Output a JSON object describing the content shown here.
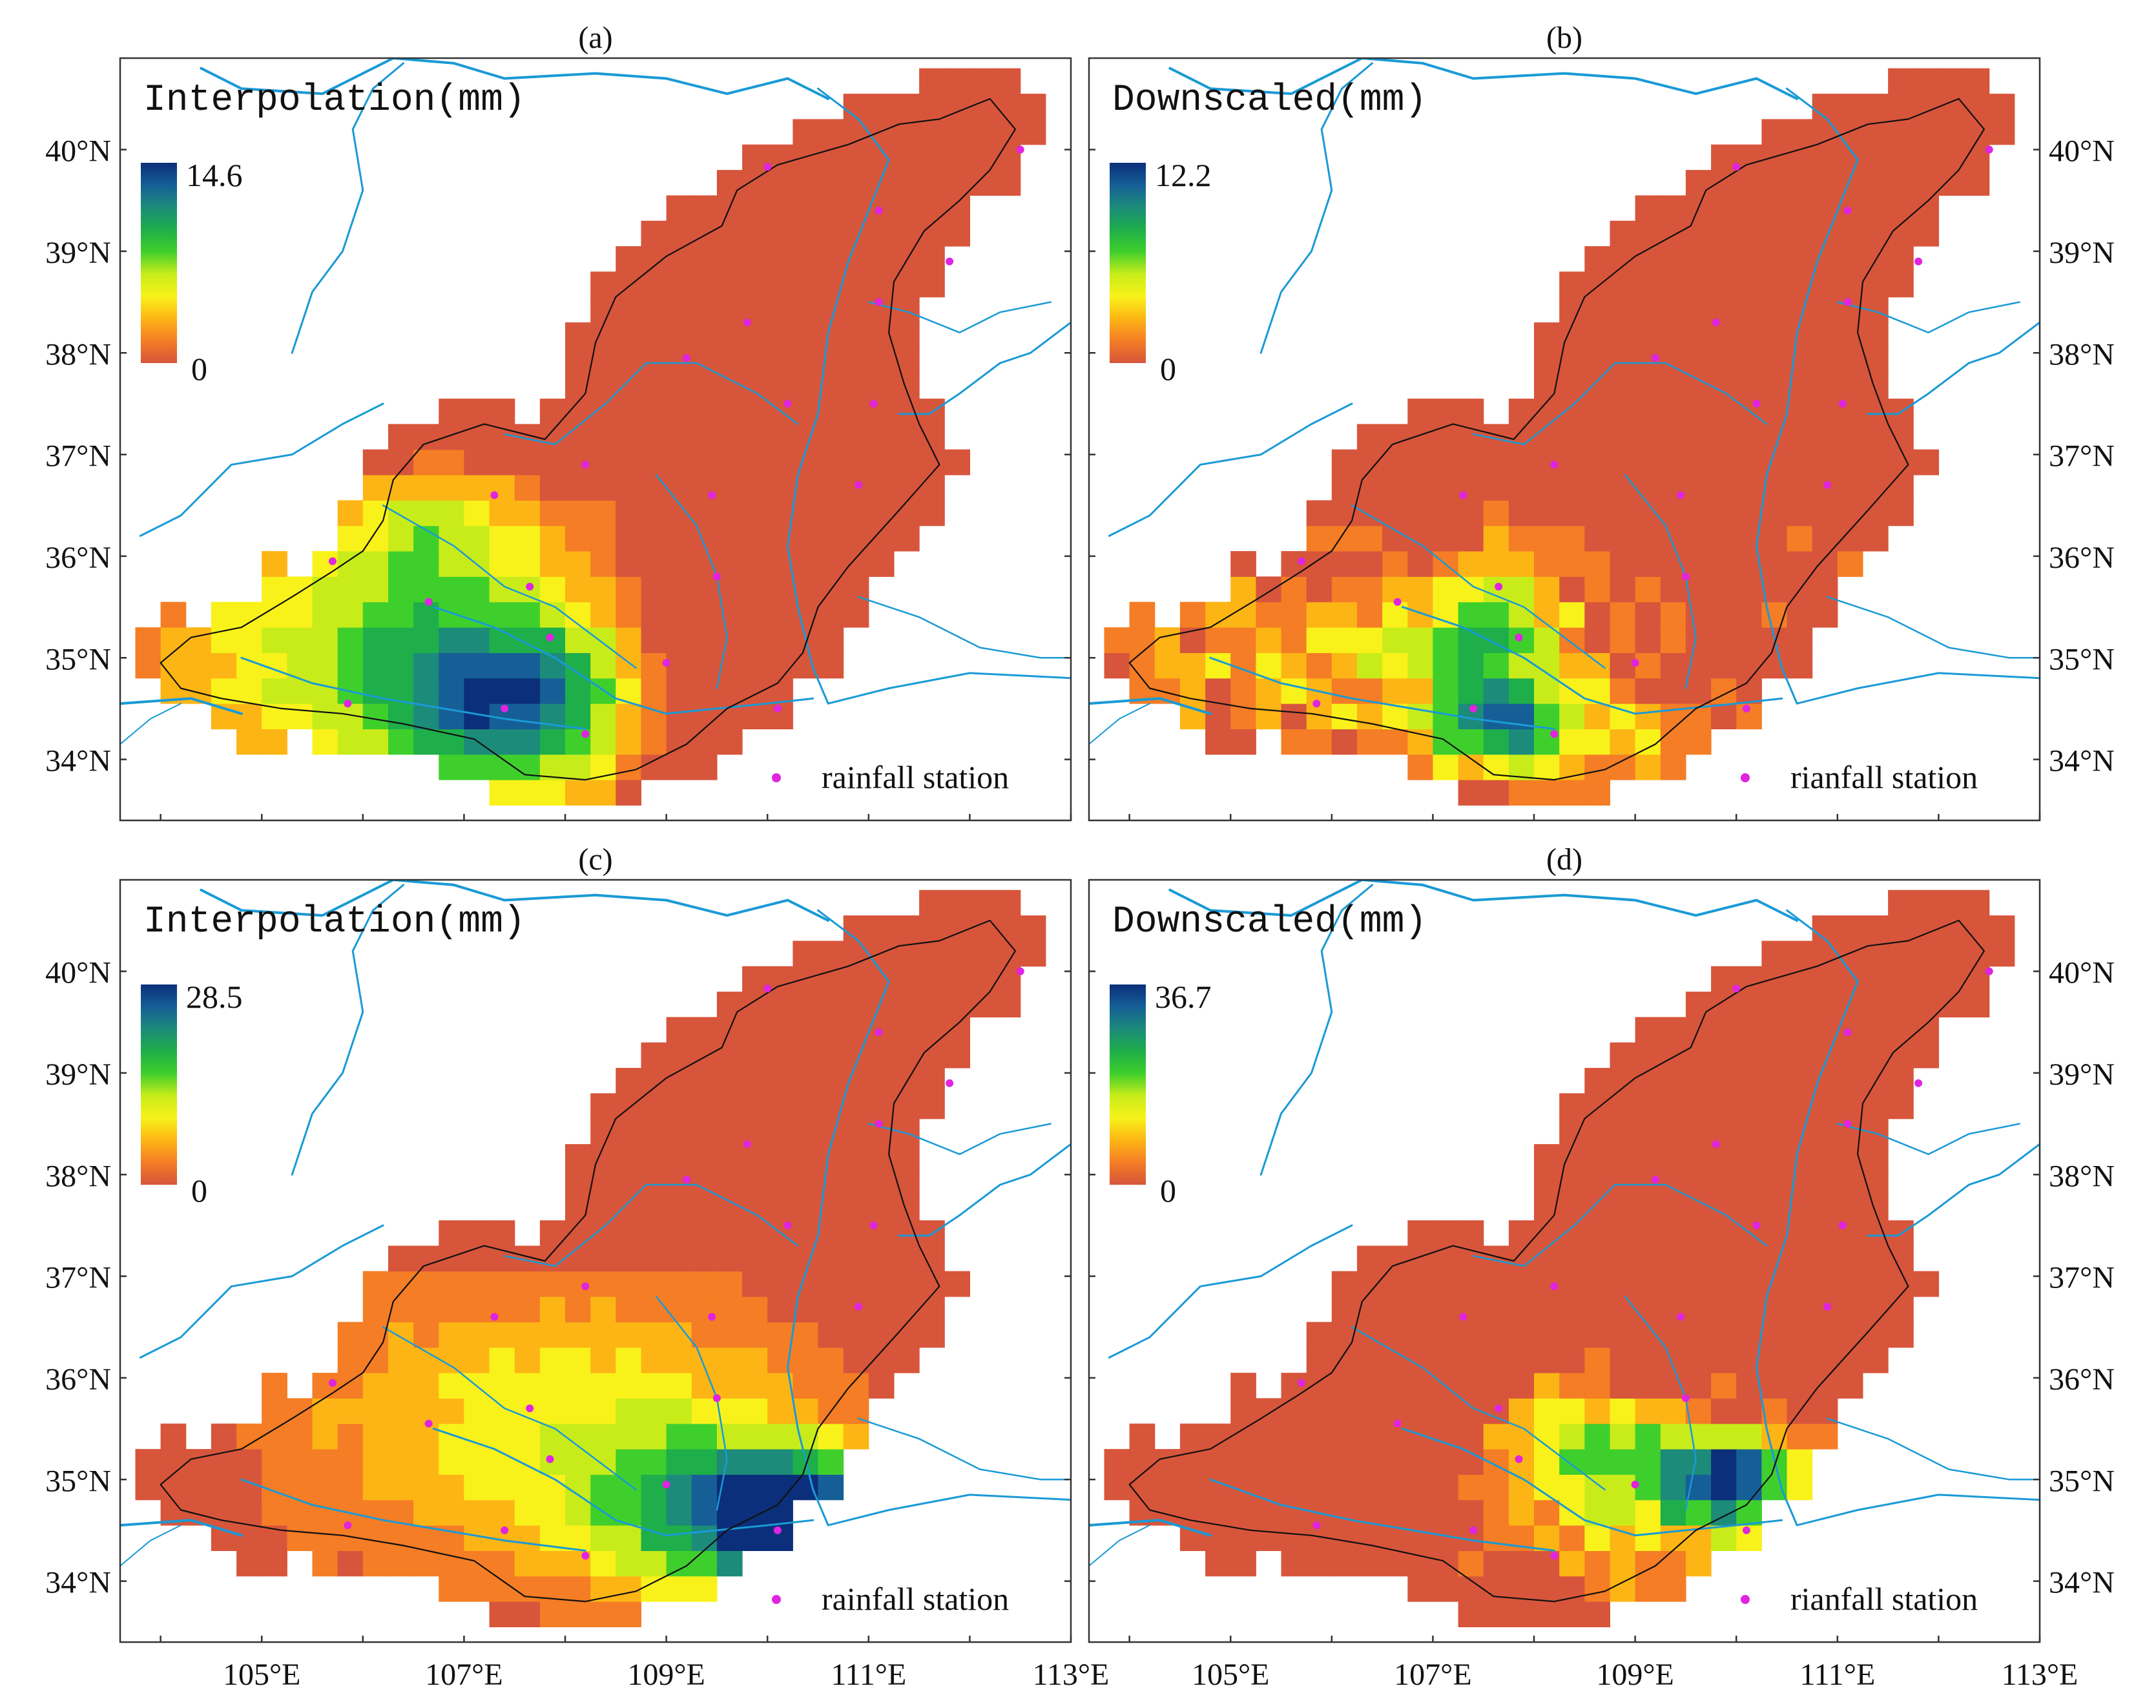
{
  "figure": {
    "panels": [
      {
        "id": "a",
        "label": "(a)",
        "title": "Interpolation(mm)",
        "scale_max": "14.6",
        "scale_min": "0",
        "legend": "rainfall station",
        "show_left_axis": true,
        "show_right_axis": false,
        "show_bottom_axis": false,
        "pattern": "west"
      },
      {
        "id": "b",
        "label": "(b)",
        "title": "Downscaled(mm)",
        "scale_max": "12.2",
        "scale_min": "0",
        "legend": "rianfall station",
        "show_left_axis": false,
        "show_right_axis": true,
        "show_bottom_axis": false,
        "pattern": "southwest_patchy"
      },
      {
        "id": "c",
        "label": "(c)",
        "title": "Interpolation(mm)",
        "scale_max": "28.5",
        "scale_min": "0",
        "legend": "rainfall station",
        "show_left_axis": true,
        "show_right_axis": false,
        "show_bottom_axis": true,
        "pattern": "southeast"
      },
      {
        "id": "d",
        "label": "(d)",
        "title": "Downscaled(mm)",
        "scale_max": "36.7",
        "scale_min": "0",
        "legend": "rianfall station",
        "show_left_axis": false,
        "show_right_axis": true,
        "show_bottom_axis": true,
        "pattern": "southeast_patchy"
      }
    ],
    "lat_labels": [
      "34°N",
      "35°N",
      "36°N",
      "37°N",
      "38°N",
      "39°N",
      "40°N"
    ],
    "lon_labels": [
      "105°E",
      "107°E",
      "109°E",
      "111°E",
      "113°E"
    ],
    "extent": {
      "lon_min": 103.6,
      "lon_max": 113.0,
      "lat_min": 33.4,
      "lat_max": 40.9
    },
    "colors": {
      "river": "#1a9ad6",
      "station": "#e024e0",
      "basin_outline": "#111111",
      "colormap": [
        "#d7553b",
        "#f47d25",
        "#fdb515",
        "#f8f21a",
        "#c8ec1a",
        "#3fcf2c",
        "#1eae4a",
        "#1c8b7a",
        "#155f96",
        "#0b2f7a"
      ]
    },
    "stations": [
      [
        110.0,
        39.83
      ],
      [
        112.5,
        40.0
      ],
      [
        111.1,
        39.4
      ],
      [
        111.8,
        38.9
      ],
      [
        111.1,
        38.5
      ],
      [
        109.8,
        38.3
      ],
      [
        109.2,
        37.95
      ],
      [
        110.2,
        37.5
      ],
      [
        111.05,
        37.5
      ],
      [
        108.2,
        36.9
      ],
      [
        107.3,
        36.6
      ],
      [
        109.45,
        36.6
      ],
      [
        110.9,
        36.7
      ],
      [
        105.7,
        35.95
      ],
      [
        106.65,
        35.55
      ],
      [
        107.65,
        35.7
      ],
      [
        109.5,
        35.8
      ],
      [
        107.85,
        35.2
      ],
      [
        109.0,
        34.95
      ],
      [
        105.85,
        34.55
      ],
      [
        107.4,
        34.5
      ],
      [
        108.2,
        34.25
      ],
      [
        110.1,
        34.5
      ]
    ]
  }
}
